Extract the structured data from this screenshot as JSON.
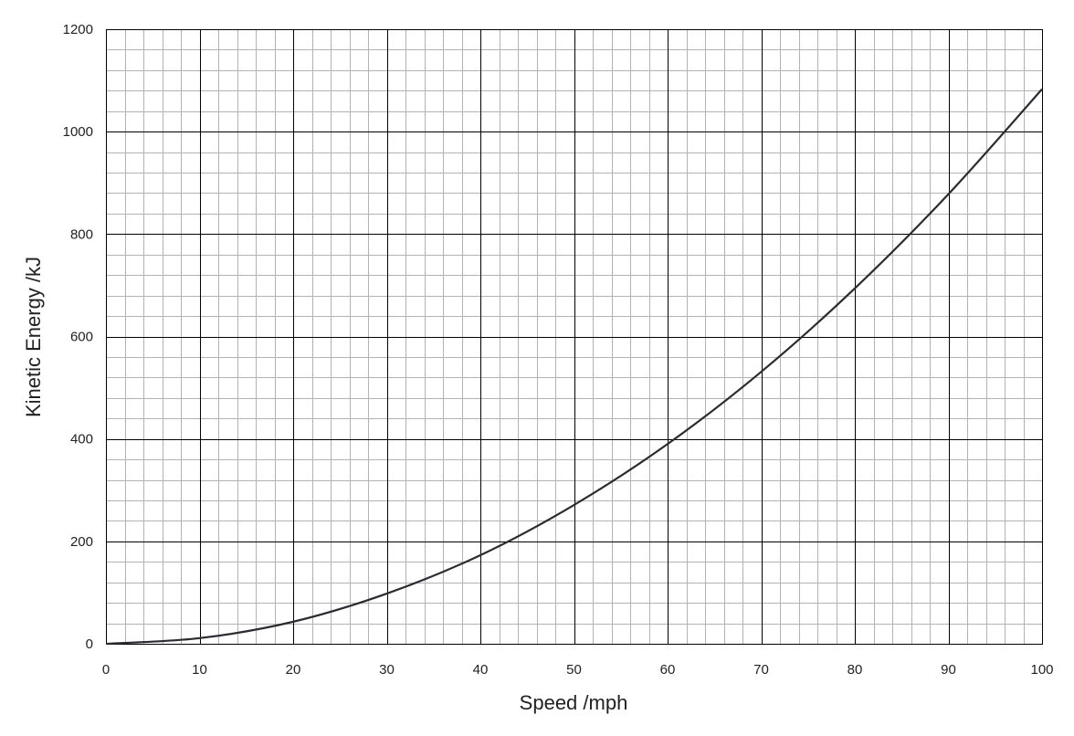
{
  "chart_data": {
    "type": "line",
    "xlabel": "Speed /mph",
    "ylabel": "Kinetic Energy /kJ",
    "xlim": [
      0,
      100
    ],
    "ylim": [
      0,
      1200
    ],
    "x_ticks": [
      "0",
      "10",
      "20",
      "30",
      "40",
      "50",
      "60",
      "70",
      "80",
      "90",
      "100"
    ],
    "y_ticks": [
      "0",
      "200",
      "400",
      "600",
      "800",
      "1000",
      "1200"
    ],
    "grid": "on (major every 10 mph / 200 kJ, minor every 2 mph / 40 kJ)",
    "legend": "none",
    "colors": {
      "curve": "#2b2b33",
      "major_grid": "#000000",
      "minor_grid": "#b3b3b3"
    },
    "series": [
      {
        "x": [
          0,
          10,
          20,
          30,
          40,
          50,
          60,
          70,
          80,
          90,
          100
        ],
        "y": [
          0,
          11,
          43,
          98,
          173,
          271,
          390,
          531,
          694,
          878,
          1083
        ]
      }
    ]
  }
}
